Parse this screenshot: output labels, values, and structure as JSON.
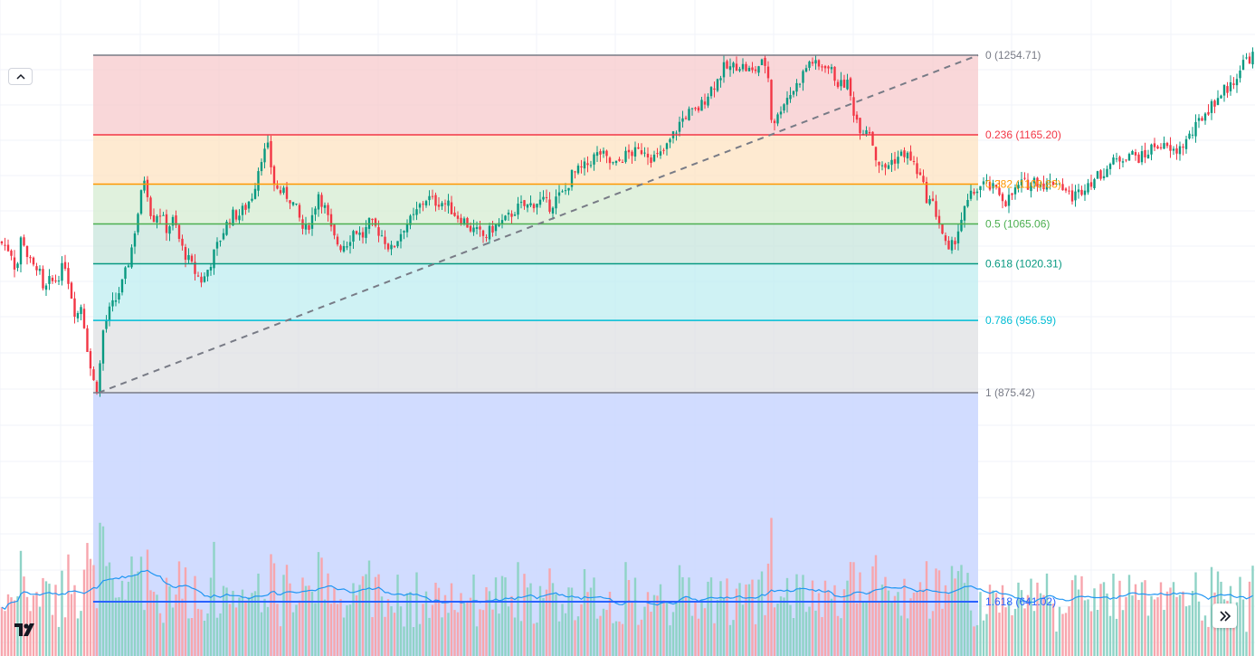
{
  "chart_data": {
    "type": "candlestick",
    "title": "",
    "fib_retracement": {
      "levels": [
        {
          "ratio": "0",
          "label": "0 (1254.71)",
          "price": 1254.71,
          "color": "#787b86",
          "fill": "#f7c9cc"
        },
        {
          "ratio": "0.236",
          "label": "0.236 (1165.20)",
          "price": 1165.2,
          "color": "#f23645",
          "fill": "#fde3c2"
        },
        {
          "ratio": "0.382",
          "label": "0.382 (1109.83)",
          "price": 1109.83,
          "color": "#ff9800",
          "fill": "#d5ecd2"
        },
        {
          "ratio": "0.5",
          "label": "0.5 (1065.06)",
          "price": 1065.06,
          "color": "#4caf50",
          "fill": "#c8e6dc"
        },
        {
          "ratio": "0.618",
          "label": "0.618 (1020.31)",
          "price": 1020.31,
          "color": "#089981",
          "fill": "#bfeef0"
        },
        {
          "ratio": "0.786",
          "label": "0.786 (956.59)",
          "price": 956.59,
          "color": "#00bcd4",
          "fill": "#dfe0e3"
        },
        {
          "ratio": "1",
          "label": "1 (875.42)",
          "price": 875.42,
          "color": "#787b86",
          "fill": "#c9d6ff"
        },
        {
          "ratio": "1.618",
          "label": "1.618 (641.02)",
          "price": 641.02,
          "color": "#2962ff",
          "fill": null
        }
      ],
      "trend_line": {
        "from_price": 875.42,
        "to_price": 1254.71
      }
    },
    "price_range": [
      600,
      1300
    ],
    "series": [
      {
        "name": "",
        "kind": "candles",
        "anchors": [
          [
            0,
            1045
          ],
          [
            6,
            1040
          ],
          [
            12,
            1035
          ],
          [
            18,
            1010
          ],
          [
            24,
            1055
          ],
          [
            30,
            1030
          ],
          [
            36,
            1015
          ],
          [
            42,
            1020
          ],
          [
            48,
            985
          ],
          [
            54,
            1000
          ],
          [
            60,
            1000
          ],
          [
            66,
            1010
          ],
          [
            72,
            1020
          ],
          [
            78,
            990
          ],
          [
            84,
            960
          ],
          [
            90,
            975
          ],
          [
            96,
            930
          ],
          [
            102,
            890
          ],
          [
            108,
            880
          ],
          [
            114,
            945
          ],
          [
            120,
            965
          ],
          [
            128,
            980
          ],
          [
            136,
            1000
          ],
          [
            144,
            1030
          ],
          [
            152,
            1075
          ],
          [
            160,
            1120
          ],
          [
            168,
            1070
          ],
          [
            176,
            1080
          ],
          [
            184,
            1060
          ],
          [
            192,
            1070
          ],
          [
            200,
            1040
          ],
          [
            208,
            1025
          ],
          [
            216,
            1010
          ],
          [
            224,
            1000
          ],
          [
            232,
            1020
          ],
          [
            240,
            1040
          ],
          [
            248,
            1060
          ],
          [
            256,
            1075
          ],
          [
            264,
            1075
          ],
          [
            272,
            1085
          ],
          [
            280,
            1100
          ],
          [
            288,
            1140
          ],
          [
            296,
            1150
          ],
          [
            304,
            1105
          ],
          [
            312,
            1100
          ],
          [
            320,
            1095
          ],
          [
            328,
            1080
          ],
          [
            336,
            1055
          ],
          [
            344,
            1070
          ],
          [
            352,
            1100
          ],
          [
            360,
            1080
          ],
          [
            368,
            1050
          ],
          [
            376,
            1040
          ],
          [
            384,
            1045
          ],
          [
            392,
            1060
          ],
          [
            400,
            1050
          ],
          [
            408,
            1065
          ],
          [
            416,
            1060
          ],
          [
            424,
            1050
          ],
          [
            432,
            1035
          ],
          [
            440,
            1050
          ],
          [
            448,
            1065
          ],
          [
            456,
            1070
          ],
          [
            464,
            1085
          ],
          [
            472,
            1095
          ],
          [
            480,
            1090
          ],
          [
            488,
            1090
          ],
          [
            496,
            1085
          ],
          [
            504,
            1075
          ],
          [
            512,
            1070
          ],
          [
            520,
            1060
          ],
          [
            528,
            1055
          ],
          [
            536,
            1050
          ],
          [
            544,
            1060
          ],
          [
            552,
            1065
          ],
          [
            560,
            1070
          ],
          [
            568,
            1080
          ],
          [
            576,
            1085
          ],
          [
            584,
            1085
          ],
          [
            592,
            1090
          ],
          [
            600,
            1090
          ],
          [
            608,
            1085
          ],
          [
            616,
            1095
          ],
          [
            624,
            1100
          ],
          [
            632,
            1120
          ],
          [
            640,
            1125
          ],
          [
            648,
            1130
          ],
          [
            656,
            1140
          ],
          [
            664,
            1145
          ],
          [
            672,
            1135
          ],
          [
            680,
            1130
          ],
          [
            688,
            1140
          ],
          [
            696,
            1145
          ],
          [
            704,
            1145
          ],
          [
            712,
            1150
          ],
          [
            720,
            1140
          ],
          [
            728,
            1140
          ],
          [
            736,
            1150
          ],
          [
            744,
            1165
          ],
          [
            752,
            1180
          ],
          [
            760,
            1190
          ],
          [
            768,
            1190
          ],
          [
            776,
            1200
          ],
          [
            784,
            1215
          ],
          [
            792,
            1225
          ],
          [
            800,
            1240
          ],
          [
            808,
            1240
          ],
          [
            816,
            1245
          ],
          [
            824,
            1240
          ],
          [
            832,
            1235
          ],
          [
            840,
            1245
          ],
          [
            848,
            1245
          ],
          [
            852,
            1185
          ],
          [
            858,
            1180
          ],
          [
            864,
            1200
          ],
          [
            872,
            1210
          ],
          [
            880,
            1220
          ],
          [
            888,
            1235
          ],
          [
            896,
            1250
          ],
          [
            904,
            1240
          ],
          [
            912,
            1245
          ],
          [
            920,
            1235
          ],
          [
            928,
            1220
          ],
          [
            936,
            1225
          ],
          [
            944,
            1190
          ],
          [
            952,
            1170
          ],
          [
            960,
            1175
          ],
          [
            968,
            1140
          ],
          [
            976,
            1125
          ],
          [
            984,
            1135
          ],
          [
            992,
            1140
          ],
          [
            1000,
            1145
          ],
          [
            1008,
            1135
          ],
          [
            1016,
            1120
          ],
          [
            1024,
            1095
          ],
          [
            1032,
            1085
          ],
          [
            1040,
            1060
          ],
          [
            1048,
            1030
          ],
          [
            1056,
            1050
          ],
          [
            1064,
            1075
          ],
          [
            1072,
            1095
          ],
          [
            1080,
            1105
          ],
          [
            1088,
            1110
          ],
          [
            1096,
            1105
          ],
          [
            1104,
            1100
          ],
          [
            1112,
            1090
          ],
          [
            1120,
            1100
          ],
          [
            1128,
            1110
          ],
          [
            1136,
            1110
          ],
          [
            1144,
            1115
          ],
          [
            1152,
            1110
          ],
          [
            1160,
            1110
          ],
          [
            1168,
            1115
          ],
          [
            1176,
            1105
          ],
          [
            1184,
            1095
          ],
          [
            1192,
            1100
          ],
          [
            1200,
            1110
          ],
          [
            1208,
            1115
          ],
          [
            1216,
            1120
          ],
          [
            1224,
            1130
          ],
          [
            1232,
            1135
          ],
          [
            1240,
            1140
          ],
          [
            1248,
            1145
          ],
          [
            1256,
            1140
          ],
          [
            1264,
            1140
          ],
          [
            1272,
            1150
          ],
          [
            1280,
            1155
          ],
          [
            1288,
            1150
          ],
          [
            1296,
            1145
          ],
          [
            1304,
            1150
          ],
          [
            1312,
            1160
          ],
          [
            1320,
            1170
          ],
          [
            1328,
            1185
          ],
          [
            1336,
            1195
          ],
          [
            1344,
            1205
          ],
          [
            1352,
            1215
          ],
          [
            1360,
            1220
          ],
          [
            1368,
            1235
          ],
          [
            1376,
            1250
          ],
          [
            1387,
            1255
          ]
        ]
      },
      {
        "name": "",
        "kind": "volume"
      },
      {
        "name": "",
        "kind": "volume-average"
      }
    ],
    "colors": {
      "up": "#089981",
      "down": "#f23645",
      "up_volume": "#8fd3c6",
      "down_volume": "#f7a6ad",
      "average_line": "#2196f3"
    }
  },
  "ui": {
    "collapse_icon": "chevron-up-icon",
    "scroll_icon": "double-chevron-right-icon",
    "logo": "tradingview-logo"
  }
}
